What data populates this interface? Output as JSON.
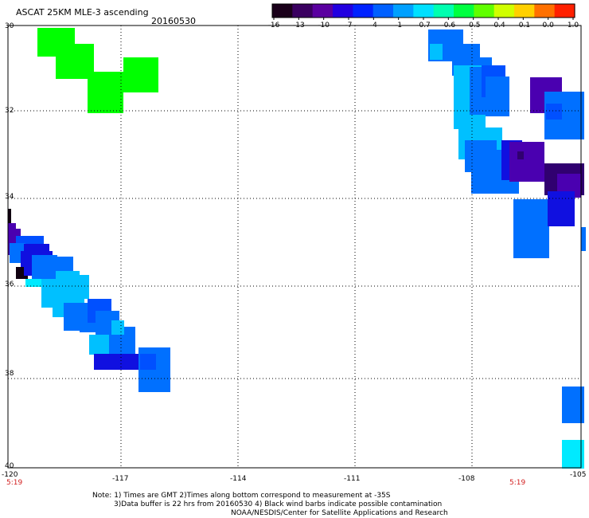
{
  "header": {
    "product": "ASCAT 25KM MLE-3 ascending",
    "date": "20160530"
  },
  "colorbar": {
    "labels": [
      "-16",
      "-13",
      "-10",
      "-7",
      "-4",
      "-1",
      "-0.7",
      "-0.6",
      "-0.5",
      "-0.4",
      "-0.1",
      "0.0",
      "1.0"
    ],
    "colors": [
      "#1a001a",
      "#3a0060",
      "#5a00a0",
      "#2200e0",
      "#0022ff",
      "#0060ff",
      "#00a0ff",
      "#00e0ff",
      "#00ffb0",
      "#00ff40",
      "#60ff00",
      "#d0ff00",
      "#ffd000",
      "#ff7000",
      "#ff2000"
    ]
  },
  "axes": {
    "lat_labels": [
      "30",
      "32",
      "34",
      "36",
      "38",
      "40"
    ],
    "lon_labels": [
      "-120",
      "-117",
      "-114",
      "-111",
      "-108",
      "-105"
    ],
    "time_labels": [
      "5:19",
      "5:19"
    ]
  },
  "footer": {
    "line1": "Note: 1) Times are GMT 2)Times along bottom correspond to measurement at -35S",
    "line2": "3)Data buffer is 22 hrs from 20160530 4) Black wind barbs indicate possible contamination",
    "line3": "NOAA/NESDIS/Center for Satellite Applications and Research"
  },
  "palette": {
    "green": "#00ff00",
    "blue": "#0070ff",
    "blue_mid": "#0050ff",
    "blue_deep": "#1010e0",
    "cyan": "#00c0ff",
    "aqua": "#00eaff",
    "purple": "#4a00b0",
    "dark_purple": "#300070",
    "black": "#100010"
  }
}
